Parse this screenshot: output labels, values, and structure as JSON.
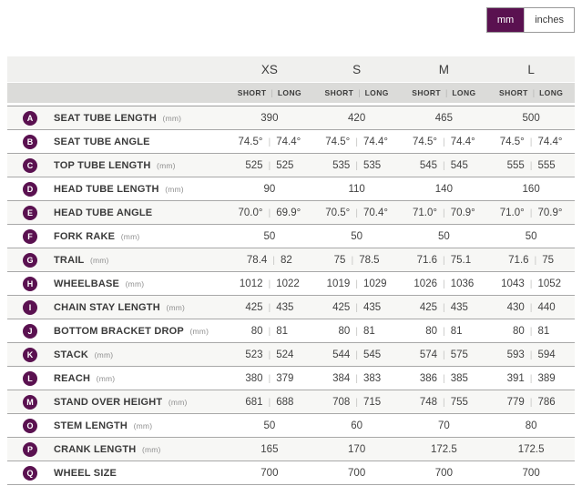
{
  "unit_toggle": {
    "options": [
      {
        "label": "mm",
        "selected": true
      },
      {
        "label": "inches",
        "selected": false
      }
    ]
  },
  "geometry_table": {
    "sizes": [
      "XS",
      "S",
      "M",
      "L"
    ],
    "fit_columns": [
      "SHORT",
      "LONG"
    ],
    "rows": [
      {
        "letter": "A",
        "label": "SEAT TUBE LENGTH",
        "unit": "(mm)",
        "values": [
          [
            "390"
          ],
          [
            "420"
          ],
          [
            "465"
          ],
          [
            "500"
          ]
        ]
      },
      {
        "letter": "B",
        "label": "SEAT TUBE ANGLE",
        "unit": "",
        "values": [
          [
            "74.5°",
            "74.4°"
          ],
          [
            "74.5°",
            "74.4°"
          ],
          [
            "74.5°",
            "74.4°"
          ],
          [
            "74.5°",
            "74.4°"
          ]
        ]
      },
      {
        "letter": "C",
        "label": "TOP TUBE LENGTH",
        "unit": "(mm)",
        "values": [
          [
            "525",
            "525"
          ],
          [
            "535",
            "535"
          ],
          [
            "545",
            "545"
          ],
          [
            "555",
            "555"
          ]
        ]
      },
      {
        "letter": "D",
        "label": "HEAD TUBE LENGTH",
        "unit": "(mm)",
        "values": [
          [
            "90"
          ],
          [
            "110"
          ],
          [
            "140"
          ],
          [
            "160"
          ]
        ]
      },
      {
        "letter": "E",
        "label": "HEAD TUBE ANGLE",
        "unit": "",
        "values": [
          [
            "70.0°",
            "69.9°"
          ],
          [
            "70.5°",
            "70.4°"
          ],
          [
            "71.0°",
            "70.9°"
          ],
          [
            "71.0°",
            "70.9°"
          ]
        ]
      },
      {
        "letter": "F",
        "label": "FORK RAKE",
        "unit": "(mm)",
        "values": [
          [
            "50"
          ],
          [
            "50"
          ],
          [
            "50"
          ],
          [
            "50"
          ]
        ]
      },
      {
        "letter": "G",
        "label": "TRAIL",
        "unit": "(mm)",
        "values": [
          [
            "78.4",
            "82"
          ],
          [
            "75",
            "78.5"
          ],
          [
            "71.6",
            "75.1"
          ],
          [
            "71.6",
            "75"
          ]
        ]
      },
      {
        "letter": "H",
        "label": "WHEELBASE",
        "unit": "(mm)",
        "values": [
          [
            "1012",
            "1022"
          ],
          [
            "1019",
            "1029"
          ],
          [
            "1026",
            "1036"
          ],
          [
            "1043",
            "1052"
          ]
        ]
      },
      {
        "letter": "I",
        "label": "CHAIN STAY LENGTH",
        "unit": "(mm)",
        "values": [
          [
            "425",
            "435"
          ],
          [
            "425",
            "435"
          ],
          [
            "425",
            "435"
          ],
          [
            "430",
            "440"
          ]
        ]
      },
      {
        "letter": "J",
        "label": "BOTTOM BRACKET DROP",
        "unit": "(mm)",
        "values": [
          [
            "80",
            "81"
          ],
          [
            "80",
            "81"
          ],
          [
            "80",
            "81"
          ],
          [
            "80",
            "81"
          ]
        ]
      },
      {
        "letter": "K",
        "label": "STACK",
        "unit": "(mm)",
        "values": [
          [
            "523",
            "524"
          ],
          [
            "544",
            "545"
          ],
          [
            "574",
            "575"
          ],
          [
            "593",
            "594"
          ]
        ]
      },
      {
        "letter": "L",
        "label": "REACH",
        "unit": "(mm)",
        "values": [
          [
            "380",
            "379"
          ],
          [
            "384",
            "383"
          ],
          [
            "386",
            "385"
          ],
          [
            "391",
            "389"
          ]
        ]
      },
      {
        "letter": "M",
        "label": "STAND OVER HEIGHT",
        "unit": "(mm)",
        "values": [
          [
            "681",
            "688"
          ],
          [
            "708",
            "715"
          ],
          [
            "748",
            "755"
          ],
          [
            "779",
            "786"
          ]
        ]
      },
      {
        "letter": "O",
        "label": "STEM LENGTH",
        "unit": "(mm)",
        "values": [
          [
            "50"
          ],
          [
            "60"
          ],
          [
            "70"
          ],
          [
            "80"
          ]
        ]
      },
      {
        "letter": "P",
        "label": "CRANK LENGTH",
        "unit": "(mm)",
        "values": [
          [
            "165"
          ],
          [
            "170"
          ],
          [
            "172.5"
          ],
          [
            "172.5"
          ]
        ]
      },
      {
        "letter": "Q",
        "label": "WHEEL SIZE",
        "unit": "",
        "values": [
          [
            "700"
          ],
          [
            "700"
          ],
          [
            "700"
          ],
          [
            "700"
          ]
        ]
      }
    ]
  },
  "colors": {
    "brand_purple": "#5a1150",
    "size_header_bg": "#f0f0ee",
    "fit_header_bg": "#dbdbd9",
    "row_alt_bg": "#f7f7f5",
    "row_border": "#a8a8a8",
    "pipe_divider": "#c8c8c6",
    "text": "#3c3c3c",
    "muted_text": "#8f8f8f"
  }
}
